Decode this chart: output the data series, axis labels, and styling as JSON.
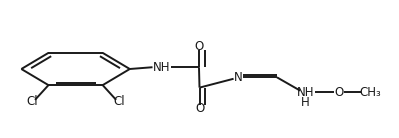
{
  "background_color": "#ffffff",
  "line_color": "#1a1a1a",
  "line_width": 1.4,
  "font_size": 8.5,
  "xlim": [
    -0.05,
    0.72
  ],
  "ylim": [
    0.18,
    0.95
  ]
}
